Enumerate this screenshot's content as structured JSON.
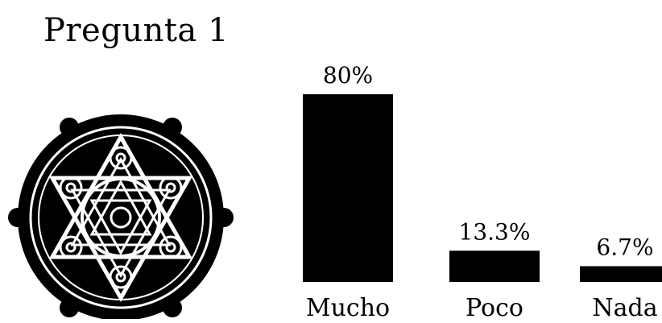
{
  "title": "Pregunta 1",
  "emblem": {
    "icon": "hexagram-seal-icon"
  },
  "chart_data": {
    "type": "bar",
    "categories": [
      "Mucho",
      "Poco",
      "Nada"
    ],
    "values": [
      80,
      13.3,
      6.7
    ],
    "data_labels": [
      "80%",
      "13.3%",
      "6.7%"
    ],
    "bar_color": "#000000",
    "grid": false
  }
}
